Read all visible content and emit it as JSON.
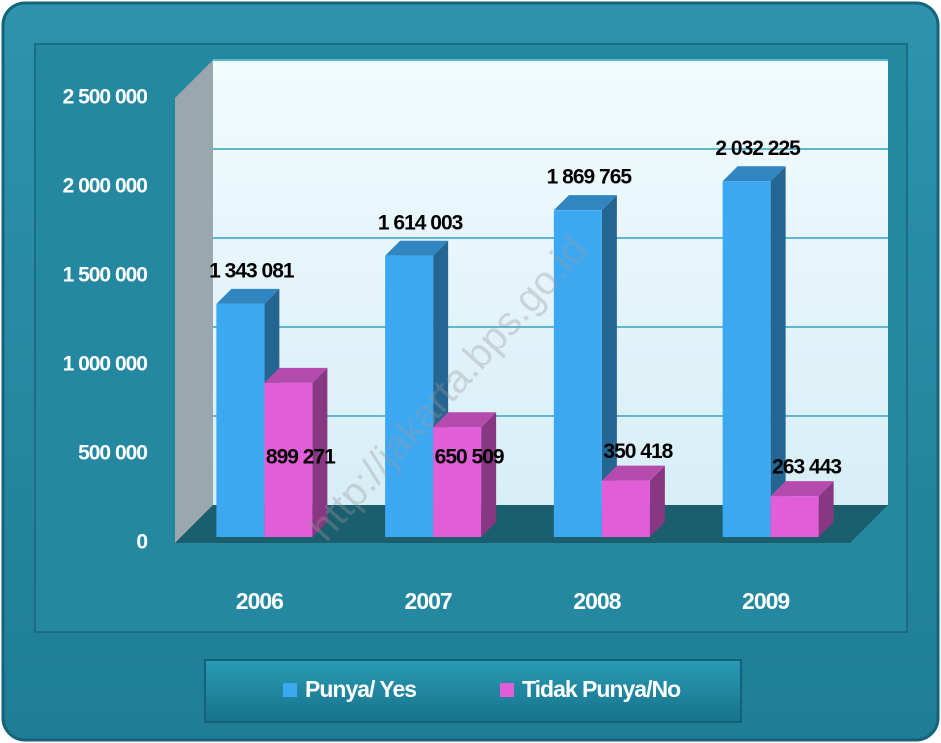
{
  "chart_data": {
    "type": "bar",
    "categories": [
      "2006",
      "2007",
      "2008",
      "2009"
    ],
    "series": [
      {
        "name": "Punya/ Yes",
        "color": "#3da8f2",
        "values": [
          1343081,
          1614003,
          1869765,
          2032225
        ],
        "value_labels": [
          "1 343 081",
          "1 614 003",
          "1 869 765",
          "2 032 225"
        ]
      },
      {
        "name": "Tidak Punya/No",
        "color": "#e25ed8",
        "values": [
          899271,
          650509,
          350418,
          263443
        ],
        "value_labels": [
          "899 271",
          "650 509",
          "350 418",
          "263 443"
        ]
      }
    ],
    "ylim": [
      0,
      2500000
    ],
    "yticks": [
      0,
      {
        "value": 500000,
        "label": "500 000"
      },
      {
        "value": 1000000,
        "label": "1 000 000"
      },
      {
        "value": 1500000,
        "label": "1 500 000"
      },
      {
        "value": 2000000,
        "label": "2 000 000"
      },
      {
        "value": 2500000,
        "label": "2 500 000"
      }
    ],
    "grid": true,
    "legend": "bottom",
    "watermark": "http://jakarta.bps.go.id"
  }
}
